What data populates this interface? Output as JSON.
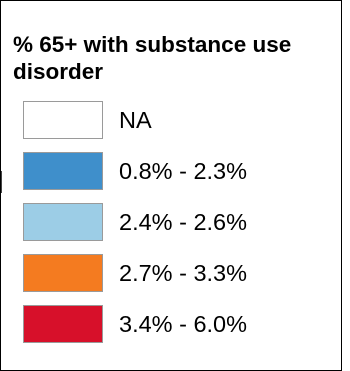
{
  "legend": {
    "title": "% 65+ with substance use disorder",
    "items": [
      {
        "label": "NA",
        "color": "#ffffff"
      },
      {
        "label": "0.8% - 2.3%",
        "color": "#3f8fcb"
      },
      {
        "label": "2.4% - 2.6%",
        "color": "#9ccde6"
      },
      {
        "label": "2.7% - 3.3%",
        "color": "#f47b20"
      },
      {
        "label": "3.4% - 6.0%",
        "color": "#d7102a"
      }
    ]
  }
}
